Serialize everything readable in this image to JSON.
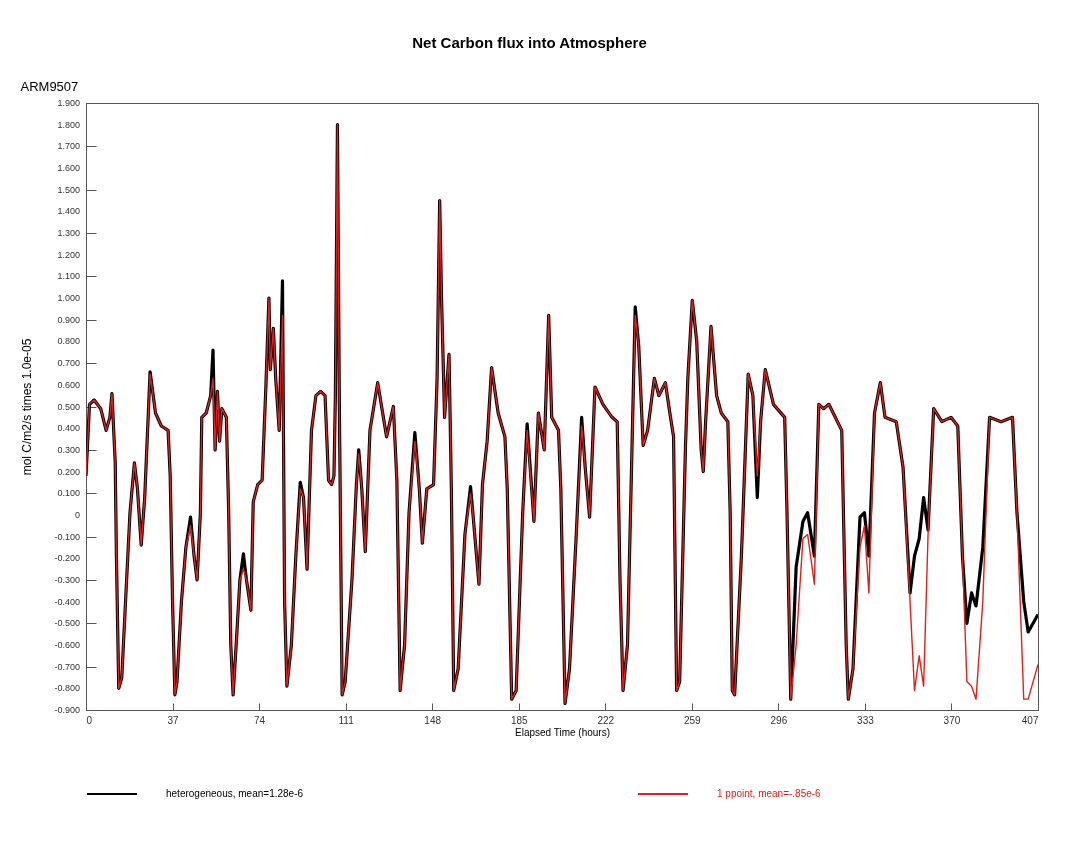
{
  "chart_data": {
    "type": "line",
    "title": "Net Carbon flux into Atmosphere",
    "subtitle": "ARM9507",
    "xlabel": "Elapsed Time (hours)",
    "ylabel": "mol C/m2/s times 1.0e-05",
    "xlim": [
      0,
      407
    ],
    "xticks": [
      0,
      37,
      74,
      111,
      148,
      185,
      222,
      259,
      296,
      333,
      370,
      407
    ],
    "ylim": [
      -0.9,
      1.9
    ],
    "yticks": [
      {
        "value": -0.9,
        "label": "-0.900"
      },
      {
        "value": -0.8,
        "label": "-0.800"
      },
      {
        "value": -0.7,
        "label": "-0.700"
      },
      {
        "value": -0.6,
        "label": "-0.600"
      },
      {
        "value": -0.5,
        "label": "-0.500"
      },
      {
        "value": -0.4,
        "label": "-0.400"
      },
      {
        "value": -0.3,
        "label": "-0.300"
      },
      {
        "value": -0.2,
        "label": "-0.200"
      },
      {
        "value": -0.1,
        "label": "-0.100"
      },
      0,
      {
        "value": 0.1,
        "label": "0.100"
      },
      {
        "value": 0.2,
        "label": "0.200"
      },
      {
        "value": 0.3,
        "label": "0.300"
      },
      {
        "value": 0.4,
        "label": "0.400"
      },
      {
        "value": 0.5,
        "label": "0.500"
      },
      {
        "value": 0.6,
        "label": "0.600"
      },
      {
        "value": 0.7,
        "label": "0.700"
      },
      {
        "value": 0.8,
        "label": "0.800"
      },
      {
        "value": 0.9,
        "label": "0.900"
      },
      {
        "value": 1,
        "label": "1.000"
      },
      {
        "value": 1.1,
        "label": "1.100"
      },
      {
        "value": 1.2,
        "label": "1.200"
      },
      {
        "value": 1.3,
        "label": "1.300"
      },
      {
        "value": 1.4,
        "label": "1.400"
      },
      {
        "value": 1.5,
        "label": "1.500"
      },
      {
        "value": 1.6,
        "label": "1.600"
      },
      {
        "value": 1.7,
        "label": "1.700"
      },
      {
        "value": 1.8,
        "label": "1.800"
      },
      {
        "value": 1.9,
        "label": "1.900"
      }
    ],
    "legend": "bottom",
    "x": [
      0,
      1.5,
      3.5,
      6.3,
      8.6,
      10.2,
      11.1,
      12.5,
      13,
      14,
      15.3,
      16.9,
      18.8,
      20.7,
      22,
      23.6,
      25.1,
      27.4,
      29.7,
      32.2,
      35.1,
      36,
      37,
      38,
      38.9,
      40.8,
      42.7,
      44.7,
      46.2,
      47.5,
      48.9,
      49.5,
      51.4,
      53.3,
      54.3,
      55.2,
      56.2,
      57.1,
      58.1,
      60,
      61,
      61.9,
      62.9,
      64.2,
      65.8,
      67.3,
      68.6,
      70.5,
      71.5,
      73.4,
      75.3,
      76.9,
      78.2,
      78.8,
      80.1,
      81.1,
      82.6,
      84,
      84.9,
      85.9,
      87.8,
      89.7,
      91.6,
      93,
      94.5,
      96.4,
      98.3,
      100.3,
      102.2,
      103.7,
      105,
      106,
      106.6,
      107.5,
      108.3,
      109.5,
      110.8,
      113.7,
      115.6,
      116.6,
      117.9,
      119.4,
      121.4,
      124.7,
      128.5,
      131.4,
      132.9,
      134.3,
      136.2,
      138.1,
      140.6,
      142.5,
      143.8,
      145.7,
      148.6,
      150.1,
      151.2,
      152,
      153.3,
      155.2,
      156.2,
      157.2,
      159.1,
      162,
      164.4,
      165.7,
      168,
      169.5,
      171.5,
      173.4,
      176.2,
      179.1,
      180.1,
      182,
      183.9,
      186.7,
      188.6,
      191.5,
      193.4,
      195.9,
      197.8,
      199.1,
      202,
      203,
      204.8,
      206.7,
      209.6,
      211.9,
      213.4,
      215.3,
      217.6,
      221,
      224.9,
      227.1,
      228.3,
      229.6,
      231.5,
      233.4,
      234.8,
      236.3,
      238.2,
      240.1,
      243,
      244.9,
      247.7,
      249.6,
      251.2,
      252.5,
      253.8,
      256.3,
      257.3,
      259.2,
      261.1,
      263,
      263.9,
      264.9,
      267.2,
      269.6,
      271.6,
      274.4,
      275.4,
      276.3,
      277.3,
      280.2,
      283.1,
      285.1,
      287,
      288.4,
      290.4,
      293.9,
      298.7,
      299.7,
      301.3,
      303.6,
      306.5,
      308.5,
      311.4,
      313.3,
      315.3,
      317.6,
      323.1,
      325,
      325.9,
      327.9,
      330.9,
      332.8,
      334.7,
      337.1,
      339.6,
      341.6,
      346.4,
      349.3,
      352.3,
      354.2,
      356.2,
      358.1,
      360,
      362.4,
      365.9,
      369.8,
      372.7,
      374.7,
      376.6,
      378.6,
      380.5,
      383.4,
      386.3,
      391.2,
      396.1,
      398,
      400.9,
      402.8,
      407
    ],
    "series": [
      {
        "name": "heterogeneous, mean=1.28e-6",
        "color": "#000000",
        "values": [
          0.18,
          0.51,
          0.53,
          0.49,
          0.39,
          0.45,
          0.56,
          0.24,
          -0.19,
          -0.8,
          -0.75,
          -0.4,
          0.01,
          0.24,
          0.12,
          -0.14,
          0.08,
          0.66,
          0.47,
          0.41,
          0.39,
          0.18,
          -0.4,
          -0.83,
          -0.77,
          -0.4,
          -0.15,
          -0.01,
          -0.19,
          -0.3,
          0.01,
          0.45,
          0.47,
          0.55,
          0.76,
          0.3,
          0.57,
          0.34,
          0.49,
          0.45,
          0.01,
          -0.6,
          -0.83,
          -0.6,
          -0.3,
          -0.18,
          -0.3,
          -0.44,
          0.06,
          0.14,
          0.16,
          0.59,
          1.0,
          0.67,
          0.86,
          0.63,
          0.39,
          1.08,
          -0.4,
          -0.79,
          -0.6,
          -0.19,
          0.15,
          0.08,
          -0.25,
          0.39,
          0.55,
          0.57,
          0.55,
          0.16,
          0.14,
          0.18,
          0.54,
          1.8,
          0.53,
          -0.83,
          -0.77,
          -0.3,
          0.14,
          0.3,
          0.12,
          -0.17,
          0.39,
          0.61,
          0.36,
          0.5,
          0.16,
          -0.81,
          -0.6,
          0.01,
          0.38,
          0.12,
          -0.13,
          0.12,
          0.14,
          0.63,
          1.45,
          1.0,
          0.45,
          0.74,
          0.12,
          -0.81,
          -0.71,
          -0.09,
          0.13,
          -0.03,
          -0.32,
          0.14,
          0.34,
          0.68,
          0.47,
          0.36,
          0.12,
          -0.85,
          -0.81,
          0.01,
          0.42,
          -0.03,
          0.47,
          0.3,
          0.92,
          0.45,
          0.39,
          0.12,
          -0.87,
          -0.71,
          -0.09,
          0.45,
          0.22,
          -0.01,
          0.59,
          0.51,
          0.45,
          0.43,
          -0.3,
          -0.81,
          -0.6,
          0.3,
          0.96,
          0.78,
          0.32,
          0.39,
          0.63,
          0.55,
          0.61,
          0.47,
          0.36,
          -0.81,
          -0.77,
          0.32,
          0.63,
          0.99,
          0.8,
          0.3,
          0.2,
          0.43,
          0.87,
          0.55,
          0.47,
          0.43,
          0.01,
          -0.81,
          -0.83,
          -0.19,
          0.65,
          0.55,
          0.08,
          0.43,
          0.67,
          0.51,
          0.45,
          0.01,
          -0.85,
          -0.24,
          -0.03,
          0.01,
          -0.19,
          0.51,
          0.49,
          0.51,
          0.39,
          -0.6,
          -0.85,
          -0.71,
          -0.01,
          0.01,
          -0.19,
          0.47,
          0.61,
          0.45,
          0.43,
          0.22,
          -0.36,
          -0.19,
          -0.11,
          0.08,
          -0.07,
          0.49,
          0.43,
          0.45,
          0.41,
          -0.19,
          -0.5,
          -0.36,
          -0.42,
          -0.15,
          0.45,
          0.43,
          0.45,
          0.01,
          -0.4,
          -0.54,
          -0.46
        ]
      },
      {
        "name": "1 ppoint, mean=-.85e-6",
        "color": "#e0201b",
        "values": [
          0.18,
          0.51,
          0.53,
          0.49,
          0.39,
          0.45,
          0.56,
          0.24,
          -0.19,
          -0.8,
          -0.75,
          -0.4,
          0.01,
          0.24,
          0.12,
          -0.14,
          0.08,
          0.65,
          0.47,
          0.41,
          0.39,
          0.18,
          -0.4,
          -0.83,
          -0.77,
          -0.4,
          -0.15,
          -0.05,
          -0.19,
          -0.3,
          0.01,
          0.45,
          0.47,
          0.55,
          0.63,
          0.3,
          0.57,
          0.34,
          0.49,
          0.45,
          0.01,
          -0.6,
          -0.83,
          -0.6,
          -0.3,
          -0.25,
          -0.3,
          -0.44,
          0.06,
          0.14,
          0.16,
          0.59,
          1.0,
          0.67,
          0.86,
          0.63,
          0.39,
          0.92,
          -0.4,
          -0.79,
          -0.6,
          -0.19,
          0.12,
          0.08,
          -0.25,
          0.39,
          0.55,
          0.57,
          0.55,
          0.16,
          0.14,
          0.18,
          0.54,
          1.8,
          0.53,
          -0.83,
          -0.77,
          -0.3,
          0.14,
          0.28,
          0.12,
          -0.17,
          0.39,
          0.61,
          0.36,
          0.5,
          0.16,
          -0.81,
          -0.6,
          0.01,
          0.34,
          0.12,
          -0.13,
          0.12,
          0.14,
          0.63,
          1.45,
          1.0,
          0.45,
          0.74,
          0.12,
          -0.81,
          -0.71,
          -0.09,
          0.1,
          -0.03,
          -0.32,
          0.14,
          0.34,
          0.68,
          0.47,
          0.36,
          0.12,
          -0.85,
          -0.81,
          0.01,
          0.39,
          -0.03,
          0.47,
          0.3,
          0.92,
          0.45,
          0.39,
          0.12,
          -0.87,
          -0.71,
          -0.09,
          0.41,
          0.22,
          -0.01,
          0.59,
          0.51,
          0.45,
          0.43,
          -0.3,
          -0.81,
          -0.6,
          0.3,
          0.92,
          0.78,
          0.32,
          0.39,
          0.63,
          0.55,
          0.61,
          0.47,
          0.36,
          -0.81,
          -0.77,
          0.32,
          0.63,
          0.99,
          0.8,
          0.3,
          0.2,
          0.43,
          0.87,
          0.55,
          0.47,
          0.43,
          0.01,
          -0.81,
          -0.83,
          -0.19,
          0.65,
          0.55,
          0.18,
          0.43,
          0.67,
          0.51,
          0.45,
          0.01,
          -0.85,
          -0.6,
          -0.11,
          -0.09,
          -0.32,
          0.51,
          0.49,
          0.51,
          0.39,
          -0.6,
          -0.85,
          -0.71,
          -0.15,
          -0.05,
          -0.36,
          0.47,
          0.61,
          0.45,
          0.43,
          0.22,
          -0.4,
          -0.81,
          -0.65,
          -0.79,
          -0.09,
          0.49,
          0.43,
          0.45,
          0.41,
          -0.19,
          -0.77,
          -0.79,
          -0.85,
          -0.4,
          0.45,
          0.43,
          0.45,
          0.01,
          -0.85,
          -0.85,
          -0.69
        ]
      }
    ]
  }
}
